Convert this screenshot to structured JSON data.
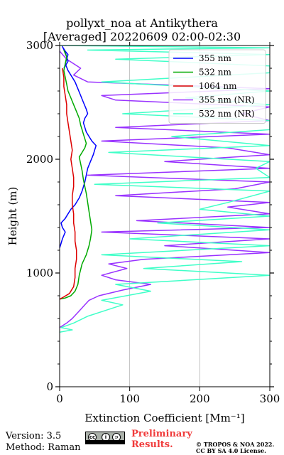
{
  "title": {
    "line1": "pollyxt_noa at Antikythera",
    "line2": "[Averaged] 20220609 02:00-02:30"
  },
  "footer": {
    "version": "Version: 3.5",
    "method": "Method: Raman",
    "prelim_line1": "Preliminary",
    "prelim_line2": "Results.",
    "copyright_line1": "© TROPOS & NOA 2022.",
    "copyright_line2": "CC BY SA 4.0 License.",
    "license_badge": "cc-by-sa-badge"
  },
  "chart_data": {
    "type": "line",
    "xlabel": "Extinction Coefficient [Mm⁻¹]",
    "ylabel": "Height (m)",
    "xlim": [
      0,
      300
    ],
    "ylim": [
      0,
      3000
    ],
    "xticks": [
      0,
      100,
      200,
      300
    ],
    "yticks": [
      0,
      1000,
      2000,
      3000
    ],
    "vertical_grid": true,
    "legend_position": "top-right",
    "series": [
      {
        "name": "355 nm",
        "color": "#0000ff",
        "x": [
          0,
          2,
          4,
          6,
          8,
          4,
          2,
          8,
          12,
          16,
          22,
          28,
          32,
          36,
          38,
          40,
          44,
          48,
          50,
          52,
          46,
          42,
          38,
          36,
          34,
          36,
          40,
          38,
          34,
          30,
          26,
          22,
          18,
          12,
          8,
          10,
          12,
          8,
          6,
          4,
          8,
          10,
          12,
          6
        ],
        "y": [
          1220,
          1260,
          1300,
          1330,
          1360,
          1400,
          1440,
          1480,
          1520,
          1560,
          1600,
          1660,
          1720,
          1800,
          1860,
          1920,
          1980,
          2040,
          2080,
          2120,
          2160,
          2200,
          2240,
          2280,
          2320,
          2360,
          2400,
          2440,
          2500,
          2560,
          2620,
          2680,
          2720,
          2780,
          2840,
          2880,
          2920,
          2950,
          2970,
          2990,
          2940,
          2900,
          2860,
          2800
        ]
      },
      {
        "name": "532 nm",
        "color": "#00aa00",
        "x": [
          0,
          8,
          16,
          22,
          26,
          28,
          32,
          38,
          42,
          44,
          46,
          44,
          42,
          40,
          38,
          36,
          34,
          32,
          30,
          28,
          32,
          36,
          38,
          36,
          34,
          32,
          30,
          28,
          24,
          20,
          16,
          12,
          10,
          8,
          6,
          8,
          10,
          6
        ],
        "y": [
          770,
          780,
          800,
          840,
          900,
          980,
          1080,
          1160,
          1240,
          1300,
          1380,
          1460,
          1540,
          1620,
          1700,
          1760,
          1820,
          1900,
          1960,
          2020,
          2060,
          2100,
          2140,
          2180,
          2220,
          2260,
          2300,
          2360,
          2420,
          2480,
          2540,
          2600,
          2660,
          2720,
          2780,
          2840,
          2900,
          2960
        ]
      },
      {
        "name": "1064 nm",
        "color": "#dd0000",
        "x": [
          0,
          6,
          14,
          20,
          22,
          22,
          24,
          24,
          22,
          22,
          20,
          20,
          18,
          18,
          20,
          20,
          18,
          16,
          18,
          16,
          14,
          12,
          10,
          10,
          8,
          6,
          6,
          4
        ],
        "y": [
          770,
          790,
          820,
          880,
          960,
          1040,
          1120,
          1200,
          1280,
          1360,
          1440,
          1520,
          1600,
          1680,
          1760,
          1840,
          1920,
          2000,
          2080,
          2160,
          2240,
          2320,
          2400,
          2480,
          2560,
          2640,
          2720,
          2800
        ]
      },
      {
        "name": "355 nm (NR)",
        "color": "#9932ff",
        "x": [
          0,
          10,
          18,
          24,
          30,
          36,
          42,
          56,
          90,
          130,
          80,
          60,
          96,
          70,
          120,
          300,
          150,
          300,
          60,
          300,
          110,
          300,
          240,
          300,
          80,
          250,
          300,
          40,
          300,
          150,
          300,
          240,
          60,
          300,
          80,
          300,
          260,
          300,
          80,
          60,
          300,
          40,
          20,
          30,
          10,
          0
        ],
        "y": [
          520,
          560,
          600,
          640,
          680,
          720,
          760,
          800,
          850,
          900,
          940,
          980,
          1040,
          1080,
          1120,
          1180,
          1240,
          1300,
          1360,
          1400,
          1460,
          1520,
          1580,
          1620,
          1680,
          1740,
          1800,
          1860,
          1920,
          1980,
          2040,
          2100,
          2160,
          2220,
          2280,
          2340,
          2400,
          2460,
          2520,
          2560,
          2620,
          2680,
          2740,
          2800,
          2880,
          2950
        ]
      },
      {
        "name": "532 nm (NR)",
        "color": "#40ffc8",
        "x": [
          0,
          18,
          2,
          20,
          40,
          70,
          90,
          60,
          130,
          80,
          300,
          120,
          260,
          60,
          300,
          100,
          300,
          140,
          300,
          200,
          240,
          300,
          50,
          300,
          280,
          300,
          70,
          300,
          160,
          300,
          300,
          90,
          300,
          180,
          300,
          60,
          300,
          300,
          80,
          300,
          40,
          300,
          0
        ],
        "y": [
          480,
          500,
          520,
          560,
          620,
          680,
          720,
          760,
          840,
          900,
          980,
          1040,
          1100,
          1160,
          1240,
          1300,
          1380,
          1440,
          1500,
          1560,
          1620,
          1720,
          1780,
          1840,
          1920,
          1980,
          2060,
          2120,
          2200,
          2260,
          2340,
          2400,
          2480,
          2540,
          2600,
          2680,
          2760,
          2820,
          2880,
          2920,
          2960,
          2980,
          3000
        ]
      }
    ]
  }
}
